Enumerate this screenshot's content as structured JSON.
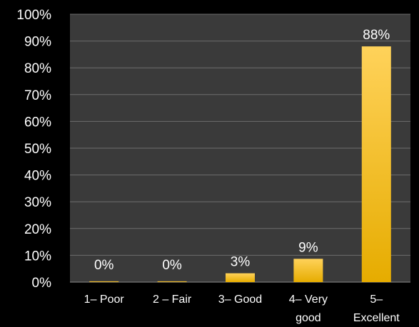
{
  "chart_data": {
    "type": "bar",
    "categories": [
      [
        "1– Poor"
      ],
      [
        "2 – Fair"
      ],
      [
        "3– Good"
      ],
      [
        "4– Very",
        "good"
      ],
      [
        "5–",
        "Excellent"
      ]
    ],
    "values": [
      0.3,
      0.3,
      3.3,
      8.7,
      88.0
    ],
    "data_labels": [
      "0%",
      "0%",
      "3%",
      "9%",
      "88%"
    ],
    "yticks": [
      "0%",
      "10%",
      "20%",
      "30%",
      "40%",
      "50%",
      "60%",
      "70%",
      "80%",
      "90%",
      "100%"
    ],
    "ylim": [
      0,
      100
    ],
    "grid": true,
    "legend": "none",
    "colors": {
      "background": "#000000",
      "plot_area": "#3a3a3a",
      "grid": "#6e6e6e",
      "bar_top": "#ffd25a",
      "bar_bottom": "#e6ac00",
      "text": "#ffffff"
    }
  }
}
